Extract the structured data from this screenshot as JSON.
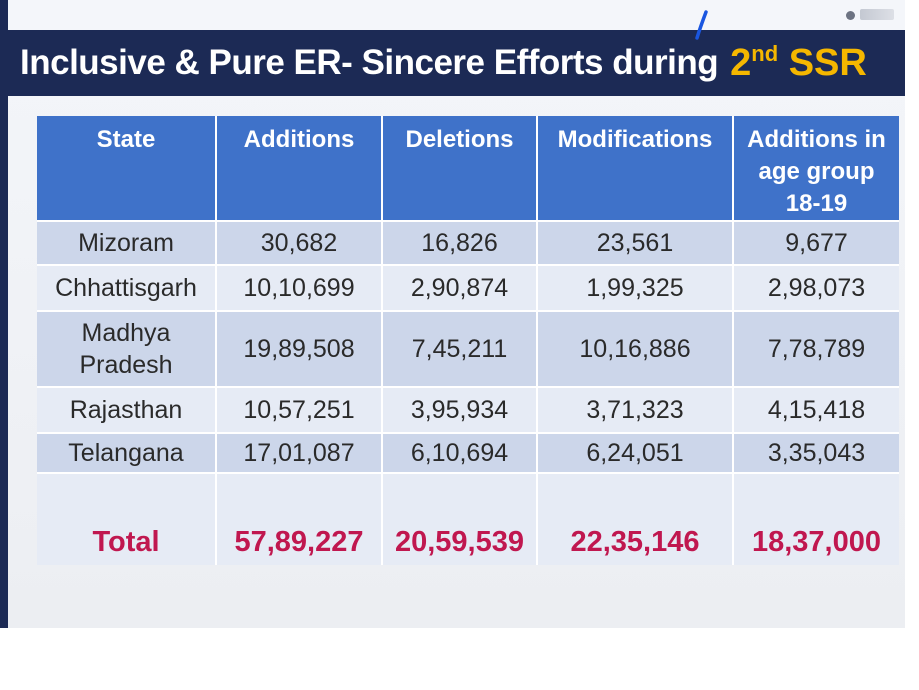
{
  "slide": {
    "title_main": "Inclusive & Pure ER- Sincere Efforts during",
    "title_accent_number": "2",
    "title_accent_super": "nd",
    "title_accent_word": "SSR",
    "colors": {
      "title_bar": "#1c2a55",
      "title_text": "#ffffff",
      "title_accent": "#f5b700",
      "header_bg": "#3f72c9",
      "row_dark": "#ccd6ea",
      "row_light": "#e6ebf5",
      "total_text": "#c0174f",
      "pen_stroke": "#1a56e0"
    }
  },
  "table": {
    "headers": [
      "State",
      "Additions",
      "Deletions",
      "Modifications",
      "Additions in age group 18-19"
    ],
    "rows": [
      [
        "Mizoram",
        "30,682",
        "16,826",
        "23,561",
        "9,677"
      ],
      [
        "Chhattisgarh",
        "10,10,699",
        "2,90,874",
        "1,99,325",
        "2,98,073"
      ],
      [
        "Madhya Pradesh",
        "19,89,508",
        "7,45,211",
        "10,16,886",
        "7,78,789"
      ],
      [
        "Rajasthan",
        "10,57,251",
        "3,95,934",
        "3,71,323",
        "4,15,418"
      ],
      [
        "Telangana",
        "17,01,087",
        "6,10,694",
        "6,24,051",
        "3,35,043"
      ]
    ],
    "total": [
      "Total",
      "57,89,227",
      "20,59,539",
      "22,35,146",
      "18,37,000"
    ]
  }
}
